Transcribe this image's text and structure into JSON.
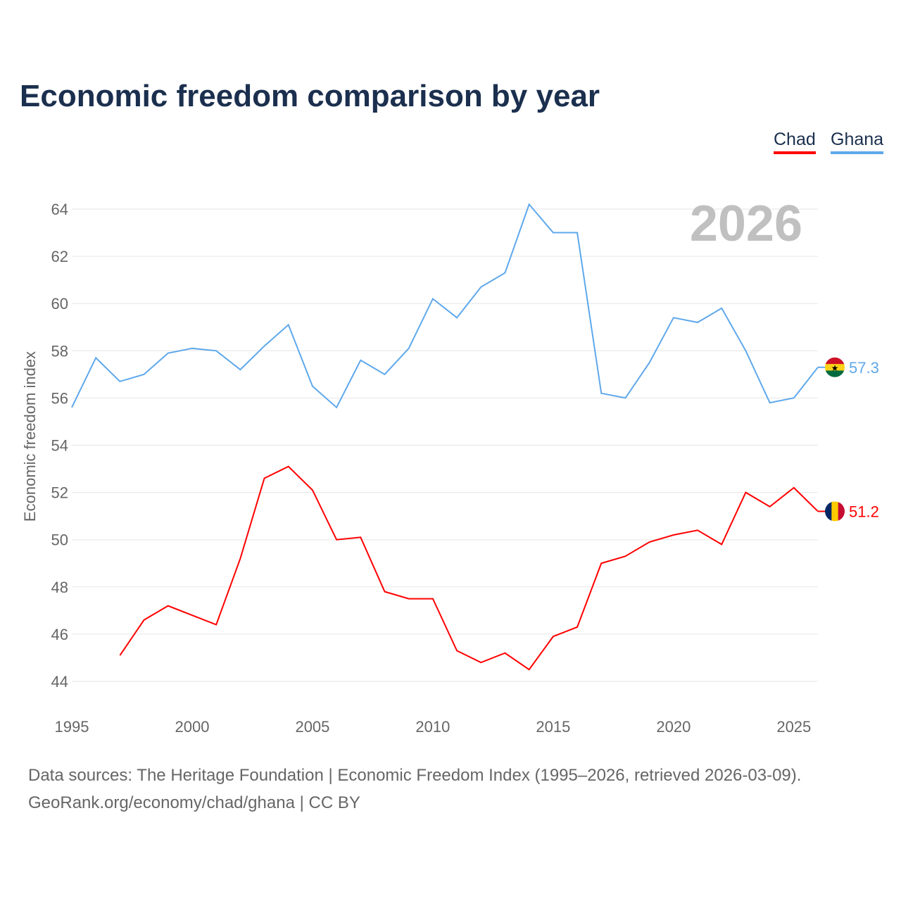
{
  "title": "Economic freedom comparison by year",
  "legend": [
    "Chad",
    "Ghana"
  ],
  "year_label": "2026",
  "footer": {
    "line1": "Data sources: The Heritage Foundation | Economic Freedom Index (1995–2026, retrieved 2026-03-09).",
    "line2": "GeoRank.org/economy/chad/ghana | CC BY"
  },
  "chart_data": {
    "type": "line",
    "title": "Economic freedom comparison by year",
    "xlabel": "",
    "ylabel": "Economic freedom index",
    "xlim": [
      1995,
      2026
    ],
    "ylim": [
      44,
      64
    ],
    "xticks": [
      1995,
      2000,
      2005,
      2010,
      2015,
      2020,
      2025
    ],
    "yticks": [
      44,
      46,
      48,
      50,
      52,
      54,
      56,
      58,
      60,
      62,
      64
    ],
    "grid": true,
    "legend_position": "top-right",
    "series": [
      {
        "name": "Chad",
        "color": "#ff0000",
        "end_label": "51.2",
        "x": [
          1997,
          1998,
          1999,
          2000,
          2001,
          2002,
          2003,
          2004,
          2005,
          2006,
          2007,
          2008,
          2009,
          2010,
          2011,
          2012,
          2013,
          2014,
          2015,
          2016,
          2017,
          2018,
          2019,
          2020,
          2021,
          2022,
          2023,
          2024,
          2025,
          2026
        ],
        "values": [
          45.1,
          46.6,
          47.2,
          46.8,
          46.4,
          49.2,
          52.6,
          53.1,
          52.1,
          50.0,
          50.1,
          47.8,
          47.5,
          47.5,
          45.3,
          44.8,
          45.2,
          44.5,
          45.9,
          46.3,
          49.0,
          49.3,
          49.9,
          50.2,
          50.4,
          49.8,
          52.0,
          51.4,
          52.2,
          51.2
        ]
      },
      {
        "name": "Ghana",
        "color": "#5ea8ec",
        "end_label": "57.3",
        "x": [
          1995,
          1996,
          1997,
          1998,
          1999,
          2000,
          2001,
          2002,
          2003,
          2004,
          2005,
          2006,
          2007,
          2008,
          2009,
          2010,
          2011,
          2012,
          2013,
          2014,
          2015,
          2016,
          2017,
          2018,
          2019,
          2020,
          2021,
          2022,
          2023,
          2024,
          2025,
          2026
        ],
        "values": [
          55.6,
          57.7,
          56.7,
          57.0,
          57.9,
          58.1,
          58.0,
          57.2,
          58.2,
          59.1,
          56.5,
          55.6,
          57.6,
          57.0,
          58.1,
          60.2,
          59.4,
          60.7,
          61.3,
          64.2,
          63.0,
          63.0,
          56.2,
          56.0,
          57.5,
          59.4,
          59.2,
          59.8,
          58.0,
          55.8,
          56.0,
          57.3
        ]
      }
    ]
  }
}
